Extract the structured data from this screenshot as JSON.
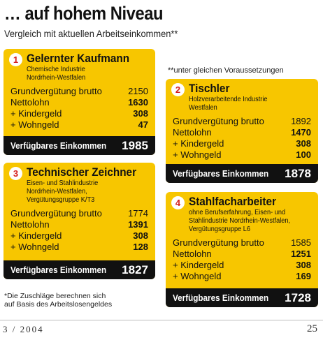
{
  "header": {
    "title": "… auf hohem Niveau",
    "subtitle": "Vergleich mit aktuellen Arbeitseinkommen**"
  },
  "note": "**unter gleichen Voraussetzungen",
  "cards": [
    {
      "number": 1,
      "title": "Gelernter Kaufmann",
      "sub": [
        "Chemische Industrie",
        "Nordrhein-Westfalen"
      ],
      "rows": [
        [
          "Grundvergütung brutto",
          2150
        ],
        [
          "Nettolohn",
          1630
        ],
        [
          "+ Kindergeld",
          308
        ],
        [
          "+ Wohngeld",
          47
        ]
      ],
      "total_label": "Verfügbares Einkommen",
      "total": 1985
    },
    {
      "number": 2,
      "title": "Tischler",
      "sub": [
        "Holzverarbeitende Industrie",
        "Westfalen"
      ],
      "rows": [
        [
          "Grundvergütung brutto",
          1892
        ],
        [
          "Nettolohn",
          1470
        ],
        [
          "+ Kindergeld",
          308
        ],
        [
          "+ Wohngeld",
          100
        ]
      ],
      "total_label": "Verfügbares Einkommen",
      "total": 1878
    },
    {
      "number": 3,
      "title": "Technischer Zeichner",
      "sub": [
        "Eisen- und Stahlindustrie",
        "Nordrhein-Westfalen,",
        "Vergütungsgruppe K/T3"
      ],
      "rows": [
        [
          "Grundvergütung brutto",
          1774
        ],
        [
          "Nettolohn",
          1391
        ],
        [
          "+ Kindergeld",
          308
        ],
        [
          "+ Wohngeld",
          128
        ]
      ],
      "total_label": "Verfügbares Einkommen",
      "total": 1827
    },
    {
      "number": 4,
      "title": "Stahlfacharbeiter",
      "sub": [
        "ohne Berufserfahrung, Eisen- und",
        "Stahlindustrie Nordrhein-Westfalen,",
        "Vergütungsgruppe L6"
      ],
      "rows": [
        [
          "Grundvergütung brutto",
          1585
        ],
        [
          "Nettolohn",
          1251
        ],
        [
          "+ Kindergeld",
          308
        ],
        [
          "+ Wohngeld",
          169
        ]
      ],
      "total_label": "Verfügbares Einkommen",
      "total": 1728
    }
  ],
  "footnote": [
    "*Die Zuschläge berechnen sich",
    "auf Basis des Arbeitslosengeldes"
  ],
  "footer": {
    "issue": "3 / 2004",
    "page": "25"
  }
}
